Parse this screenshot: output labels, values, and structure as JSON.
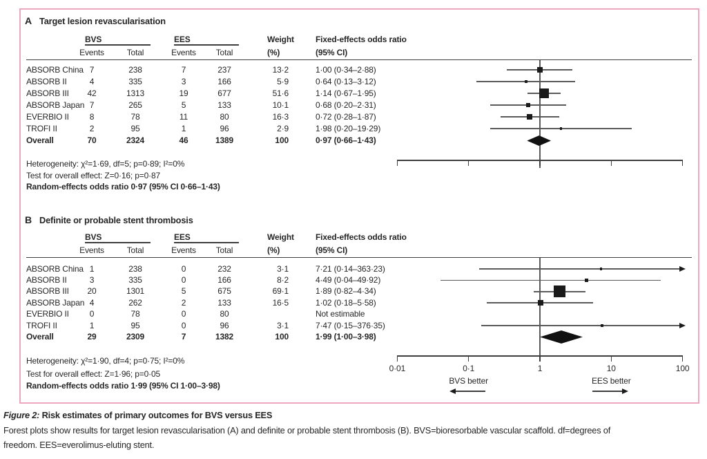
{
  "figure": {
    "caption_label": "Figure 2:",
    "caption_title": " Risk estimates of primary outcomes for BVS versus EES",
    "caption_lines": [
      "Forest plots show results for target lesion revascularisation (A) and definite or probable stent thrombosis (B). BVS=bioresorbable vascular scaffold. df=degrees of",
      "freedom. EES=everolimus-eluting stent."
    ],
    "border_color": "#eba7bd",
    "text_color": "#262626"
  },
  "chart_data": {
    "type": "forest",
    "axis": {
      "scale": "log",
      "min": 0.01,
      "max": 100,
      "ref_line": 1,
      "ticks": [
        0.01,
        0.1,
        1,
        10,
        100
      ],
      "tick_labels": [
        "0·01",
        "0·1",
        "1",
        "10",
        "100"
      ],
      "direction_left": "BVS better",
      "direction_right": "EES better"
    },
    "columns": {
      "group1": "BVS",
      "group2": "EES",
      "events": "Events",
      "total": "Total",
      "weight_line1": "Weight",
      "weight_line2": "(%)",
      "or_line1": "Fixed-effects odds ratio",
      "or_line2": "(95% CI)"
    },
    "panels": [
      {
        "id": "A",
        "label": "A",
        "title": "Target lesion revascularisation",
        "studies": [
          {
            "name": "ABSORB China",
            "bvs_events": "7",
            "bvs_total": "238",
            "ees_events": "7",
            "ees_total": "237",
            "weight": "13·2",
            "weight_num": 13.2,
            "or": 1.0,
            "ci_low": 0.34,
            "ci_high": 2.88,
            "or_text": "1·00 (0·34–2·88)"
          },
          {
            "name": "ABSORB II",
            "bvs_events": "4",
            "bvs_total": "335",
            "ees_events": "3",
            "ees_total": "166",
            "weight": "5·9",
            "weight_num": 5.9,
            "or": 0.64,
            "ci_low": 0.13,
            "ci_high": 3.12,
            "or_text": "0·64 (0·13–3·12)"
          },
          {
            "name": "ABSORB III",
            "bvs_events": "42",
            "bvs_total": "1313",
            "ees_events": "19",
            "ees_total": "677",
            "weight": "51·6",
            "weight_num": 51.6,
            "or": 1.14,
            "ci_low": 0.67,
            "ci_high": 1.95,
            "or_text": "1·14 (0·67–1·95)"
          },
          {
            "name": "ABSORB Japan",
            "bvs_events": "7",
            "bvs_total": "265",
            "ees_events": "5",
            "ees_total": "133",
            "weight": "10·1",
            "weight_num": 10.1,
            "or": 0.68,
            "ci_low": 0.2,
            "ci_high": 2.31,
            "or_text": "0·68 (0·20–2·31)"
          },
          {
            "name": "EVERBIO II",
            "bvs_events": "8",
            "bvs_total": "78",
            "ees_events": "11",
            "ees_total": "80",
            "weight": "16·3",
            "weight_num": 16.3,
            "or": 0.72,
            "ci_low": 0.28,
            "ci_high": 1.87,
            "or_text": "0·72 (0·28–1·87)"
          },
          {
            "name": "TROFI II",
            "bvs_events": "2",
            "bvs_total": "95",
            "ees_events": "1",
            "ees_total": "96",
            "weight": "2·9",
            "weight_num": 2.9,
            "or": 1.98,
            "ci_low": 0.2,
            "ci_high": 19.29,
            "or_text": "1·98 (0·20–19·29)"
          }
        ],
        "overall": {
          "name": "Overall",
          "bvs_events": "70",
          "bvs_total": "2324",
          "ees_events": "46",
          "ees_total": "1389",
          "weight": "100",
          "or": 0.97,
          "ci_low": 0.66,
          "ci_high": 1.43,
          "or_text": "0·97 (0·66–1·43)"
        },
        "footer_lines": [
          "Heterogeneity: χ²=1·69, df=5; p=0·89; I²=0%",
          "Test for overall effect: Z=0·16; p=0·87"
        ],
        "footer_bold": "Random-effects odds ratio 0·97 (95% CI 0·66–1·43)",
        "show_tick_labels": false
      },
      {
        "id": "B",
        "label": "B",
        "title": "Definite or probable stent thrombosis",
        "studies": [
          {
            "name": "ABSORB China",
            "bvs_events": "1",
            "bvs_total": "238",
            "ees_events": "0",
            "ees_total": "232",
            "weight": "3·1",
            "weight_num": 3.1,
            "or": 7.21,
            "ci_low": 0.14,
            "ci_high": 363.23,
            "or_text": "7·21 (0·14–363·23)"
          },
          {
            "name": "ABSORB II",
            "bvs_events": "3",
            "bvs_total": "335",
            "ees_events": "0",
            "ees_total": "166",
            "weight": "8·2",
            "weight_num": 8.2,
            "or": 4.49,
            "ci_low": 0.04,
            "ci_high": 49.92,
            "or_text": "4·49 (0·04–49·92)"
          },
          {
            "name": "ABSORB III",
            "bvs_events": "20",
            "bvs_total": "1301",
            "ees_events": "5",
            "ees_total": "675",
            "weight": "69·1",
            "weight_num": 69.1,
            "or": 1.89,
            "ci_low": 0.82,
            "ci_high": 4.34,
            "or_text": "1·89 (0·82–4·34)"
          },
          {
            "name": "ABSORB Japan",
            "bvs_events": "4",
            "bvs_total": "262",
            "ees_events": "2",
            "ees_total": "133",
            "weight": "16·5",
            "weight_num": 16.5,
            "or": 1.02,
            "ci_low": 0.18,
            "ci_high": 5.58,
            "or_text": "1·02 (0·18–5·58)"
          },
          {
            "name": "EVERBIO II",
            "bvs_events": "0",
            "bvs_total": "78",
            "ees_events": "0",
            "ees_total": "80",
            "weight": "",
            "weight_num": null,
            "or": null,
            "ci_low": null,
            "ci_high": null,
            "or_text": "Not estimable"
          },
          {
            "name": "TROFI II",
            "bvs_events": "1",
            "bvs_total": "95",
            "ees_events": "0",
            "ees_total": "96",
            "weight": "3·1",
            "weight_num": 3.1,
            "or": 7.47,
            "ci_low": 0.15,
            "ci_high": 376.35,
            "or_text": "7·47 (0·15–376·35)"
          }
        ],
        "overall": {
          "name": "Overall",
          "bvs_events": "29",
          "bvs_total": "2309",
          "ees_events": "7",
          "ees_total": "1382",
          "weight": "100",
          "or": 1.99,
          "ci_low": 1.0,
          "ci_high": 3.98,
          "or_text": "1·99 (1·00–3·98)"
        },
        "footer_lines": [
          "Heterogeneity: χ²=1·90, df=4; p=0·75; I²=0%",
          "Test for overall effect: Z=1·96; p=0·05"
        ],
        "footer_bold": "Random-effects odds ratio 1·99 (95% CI 1·00–3·98)",
        "show_tick_labels": true
      }
    ]
  }
}
